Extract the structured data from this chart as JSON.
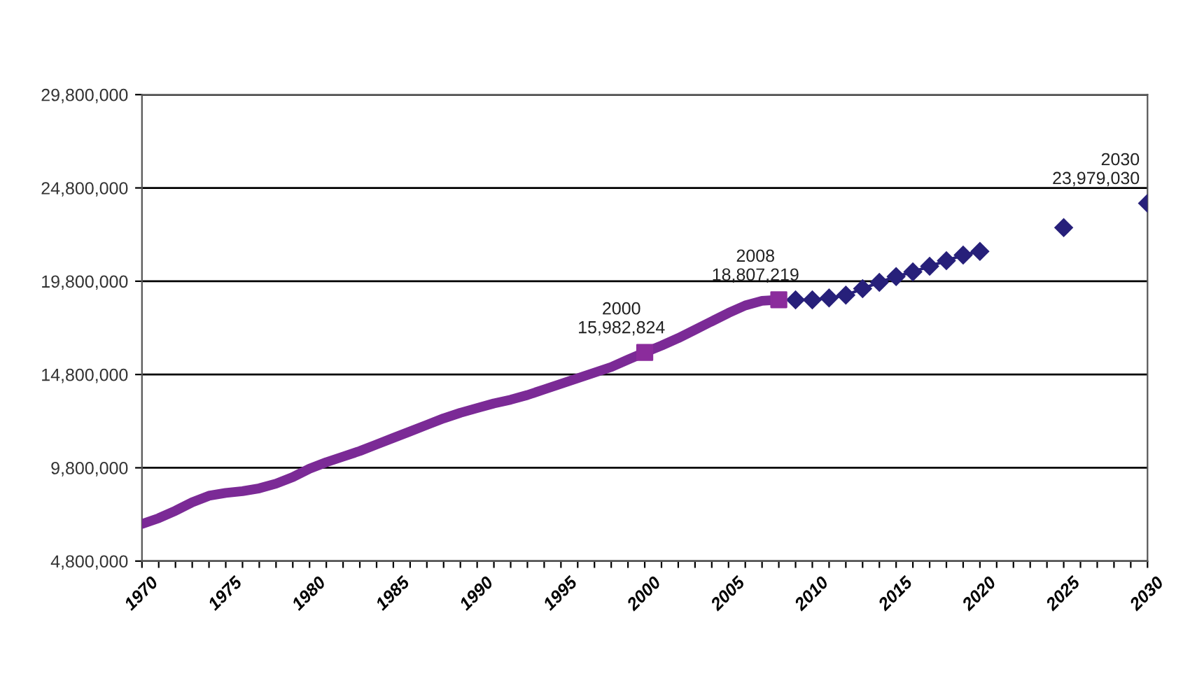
{
  "chart_data": {
    "type": "line",
    "xlim": [
      1970,
      2030
    ],
    "xticks": [
      1970,
      {
        "value": 1971,
        "label": null
      },
      {
        "value": 1972,
        "label": null
      },
      {
        "value": 1973,
        "label": null
      },
      {
        "value": 1974,
        "label": null
      },
      1975,
      {
        "value": 1976,
        "label": null
      },
      {
        "value": 1977,
        "label": null
      },
      {
        "value": 1978,
        "label": null
      },
      {
        "value": 1979,
        "label": null
      },
      1980,
      {
        "value": 1981,
        "label": null
      },
      {
        "value": 1982,
        "label": null
      },
      {
        "value": 1983,
        "label": null
      },
      {
        "value": 1984,
        "label": null
      },
      1985,
      {
        "value": 1986,
        "label": null
      },
      {
        "value": 1987,
        "label": null
      },
      {
        "value": 1988,
        "label": null
      },
      {
        "value": 1989,
        "label": null
      },
      1990,
      {
        "value": 1991,
        "label": null
      },
      {
        "value": 1992,
        "label": null
      },
      {
        "value": 1993,
        "label": null
      },
      {
        "value": 1994,
        "label": null
      },
      1995,
      {
        "value": 1996,
        "label": null
      },
      {
        "value": 1997,
        "label": null
      },
      {
        "value": 1998,
        "label": null
      },
      {
        "value": 1999,
        "label": null
      },
      2000,
      {
        "value": 2001,
        "label": null
      },
      {
        "value": 2002,
        "label": null
      },
      {
        "value": 2003,
        "label": null
      },
      {
        "value": 2004,
        "label": null
      },
      2005,
      {
        "value": 2006,
        "label": null
      },
      {
        "value": 2007,
        "label": null
      },
      {
        "value": 2008,
        "label": null
      },
      {
        "value": 2009,
        "label": null
      },
      2010,
      {
        "value": 2011,
        "label": null
      },
      {
        "value": 2012,
        "label": null
      },
      {
        "value": 2013,
        "label": null
      },
      {
        "value": 2014,
        "label": null
      },
      2015,
      {
        "value": 2016,
        "label": null
      },
      {
        "value": 2017,
        "label": null
      },
      {
        "value": 2018,
        "label": null
      },
      {
        "value": 2019,
        "label": null
      },
      2020,
      {
        "value": 2021,
        "label": null
      },
      {
        "value": 2022,
        "label": null
      },
      {
        "value": 2023,
        "label": null
      },
      {
        "value": 2024,
        "label": null
      },
      2025,
      {
        "value": 2026,
        "label": null
      },
      {
        "value": 2027,
        "label": null
      },
      {
        "value": 2028,
        "label": null
      },
      {
        "value": 2029,
        "label": null
      },
      2030
    ],
    "ylim": [
      4800000,
      29800000
    ],
    "yticks": [
      {
        "value": 4800000,
        "label": "4,800,000"
      },
      {
        "value": 9800000,
        "label": "9,800,000"
      },
      {
        "value": 14800000,
        "label": "14,800,000"
      },
      {
        "value": 19800000,
        "label": "19,800,000"
      },
      {
        "value": 24800000,
        "label": "24,800,000"
      },
      {
        "value": 29800000,
        "label": "29,800,000"
      }
    ],
    "grid": "y",
    "series": [
      {
        "color": "#7b2a96",
        "marker": "none",
        "line_style": "solid",
        "x": [
          1970,
          1971,
          1972,
          1973,
          1974,
          1975,
          1976,
          1977,
          1978,
          1979,
          1980,
          1981,
          1982,
          1983,
          1984,
          1985,
          1986,
          1987,
          1988,
          1989,
          1990,
          1991,
          1992,
          1993,
          1994,
          1995,
          1996,
          1997,
          1998,
          1999,
          2000,
          2001,
          2002,
          2003,
          2004,
          2005,
          2006,
          2007,
          2008
        ],
        "values": [
          6790000,
          7100000,
          7500000,
          7950000,
          8300000,
          8450000,
          8550000,
          8700000,
          8950000,
          9300000,
          9750000,
          10100000,
          10400000,
          10700000,
          11050000,
          11400000,
          11750000,
          12100000,
          12450000,
          12750000,
          13000000,
          13250000,
          13450000,
          13700000,
          14000000,
          14300000,
          14600000,
          14900000,
          15200000,
          15600000,
          15982824,
          16350000,
          16750000,
          17200000,
          17650000,
          18100000,
          18500000,
          18750000,
          18807219
        ]
      },
      {
        "type": "scatter",
        "color": "#8b2c9c",
        "marker": "square",
        "x": [
          2000,
          2008
        ],
        "values": [
          15982824,
          18807219
        ]
      },
      {
        "type": "line",
        "color": "#27207a",
        "marker": "diamond",
        "line_style": "solid",
        "x": [
          2009,
          2010,
          2011,
          2012,
          2013,
          2014,
          2015,
          2016,
          2017,
          2018,
          2019,
          2020,
          2021,
          2022,
          2023,
          2024,
          2025,
          2026,
          2027,
          2028,
          2029,
          2030
        ],
        "values": [
          18800000,
          18800000,
          18900000,
          19050000,
          19400000,
          19740000,
          20050000,
          20300000,
          20600000,
          20900000,
          21200000,
          21400000,
          null,
          null,
          null,
          null,
          22670000,
          null,
          null,
          null,
          null,
          23979030
        ]
      }
    ],
    "annotations": [
      {
        "text": "2000\n15,982,824",
        "x": 2000,
        "y": 15982824
      },
      {
        "text": "2008\n18,807,219",
        "x": 2008,
        "y": 18807219
      },
      {
        "text": "2030\n23,979,030",
        "x": 2030,
        "y": 23979030
      }
    ]
  }
}
